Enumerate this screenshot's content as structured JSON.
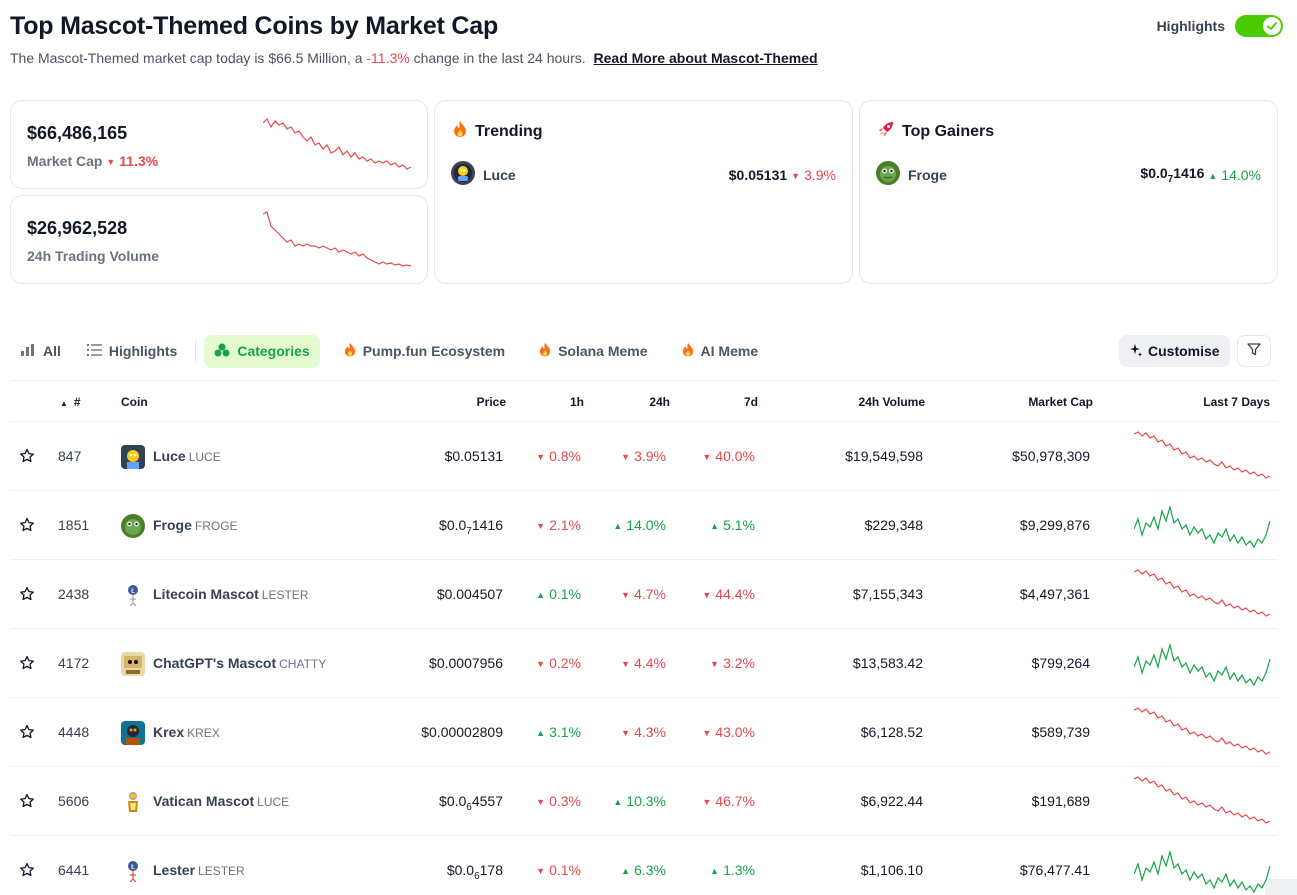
{
  "page": {
    "title": "Top Mascot-Themed Coins by Market Cap",
    "subtitle_prefix": "The Mascot-Themed market cap today is $66.5 Million, a",
    "subtitle_change": "-11.3%",
    "subtitle_suffix": "change in the last 24 hours.",
    "read_more": "Read More about Mascot-Themed"
  },
  "highlights_toggle": {
    "label": "Highlights",
    "on": true
  },
  "stats": {
    "market_cap": {
      "value": "$66,486,165",
      "label": "Market Cap",
      "change": "11.3%",
      "direction": "down"
    },
    "volume": {
      "value": "$26,962,528",
      "label": "24h Trading Volume"
    }
  },
  "trending": {
    "title": "Trending",
    "coin": {
      "name": "Luce",
      "price": "$0.05131",
      "change": "3.9%",
      "direction": "down"
    }
  },
  "top_gainers": {
    "title": "Top Gainers",
    "coin": {
      "name": "Froge",
      "price_prefix": "$0.0",
      "price_sub": "7",
      "price_suffix": "1416",
      "change": "14.0%",
      "direction": "up"
    }
  },
  "tabs": [
    {
      "label": "All",
      "icon": "bar-chart-icon",
      "active": false
    },
    {
      "label": "Highlights",
      "icon": "list-icon",
      "active": false
    },
    {
      "label": "Categories",
      "icon": "categories-icon",
      "active": true
    },
    {
      "label": "Pump.fun Ecosystem",
      "icon": "fire-icon",
      "active": false
    },
    {
      "label": "Solana Meme",
      "icon": "fire-icon",
      "active": false
    },
    {
      "label": "AI Meme",
      "icon": "fire-icon",
      "active": false
    }
  ],
  "toolbar": {
    "customise_label": "Customise",
    "filter_icon": "filter-icon"
  },
  "table": {
    "headers": {
      "rank": "#",
      "coin": "Coin",
      "price": "Price",
      "h1": "1h",
      "h24": "24h",
      "d7": "7d",
      "volume": "24h Volume",
      "market_cap": "Market Cap",
      "last7": "Last 7 Days"
    },
    "rows": [
      {
        "rank": "847",
        "name": "Luce",
        "symbol": "LUCE",
        "price_prefix": "$0.05131",
        "price_sub": "",
        "price_suffix": "",
        "h1": "0.8%",
        "h1_dir": "down",
        "h24": "3.9%",
        "h24_dir": "down",
        "d7": "40.0%",
        "d7_dir": "down",
        "volume": "$19,549,598",
        "market_cap": "$50,978,309",
        "trend": "down"
      },
      {
        "rank": "1851",
        "name": "Froge",
        "symbol": "FROGE",
        "price_prefix": "$0.0",
        "price_sub": "7",
        "price_suffix": "1416",
        "h1": "2.1%",
        "h1_dir": "down",
        "h24": "14.0%",
        "h24_dir": "up",
        "d7": "5.1%",
        "d7_dir": "up",
        "volume": "$229,348",
        "market_cap": "$9,299,876",
        "trend": "up"
      },
      {
        "rank": "2438",
        "name": "Litecoin Mascot",
        "symbol": "LESTER",
        "price_prefix": "$0.004507",
        "price_sub": "",
        "price_suffix": "",
        "h1": "0.1%",
        "h1_dir": "up",
        "h24": "4.7%",
        "h24_dir": "down",
        "d7": "44.4%",
        "d7_dir": "down",
        "volume": "$7,155,343",
        "market_cap": "$4,497,361",
        "trend": "down"
      },
      {
        "rank": "4172",
        "name": "ChatGPT's Mascot",
        "symbol": "CHATTY",
        "price_prefix": "$0.0007956",
        "price_sub": "",
        "price_suffix": "",
        "h1": "0.2%",
        "h1_dir": "down",
        "h24": "4.4%",
        "h24_dir": "down",
        "d7": "3.2%",
        "d7_dir": "down",
        "volume": "$13,583.42",
        "market_cap": "$799,264",
        "trend": "up"
      },
      {
        "rank": "4448",
        "name": "Krex",
        "symbol": "KREX",
        "price_prefix": "$0.00002809",
        "price_sub": "",
        "price_suffix": "",
        "h1": "3.1%",
        "h1_dir": "up",
        "h24": "4.3%",
        "h24_dir": "down",
        "d7": "43.0%",
        "d7_dir": "down",
        "volume": "$6,128.52",
        "market_cap": "$589,739",
        "trend": "down"
      },
      {
        "rank": "5606",
        "name": "Vatican Mascot",
        "symbol": "LUCE",
        "price_prefix": "$0.0",
        "price_sub": "6",
        "price_suffix": "4557",
        "h1": "0.3%",
        "h1_dir": "down",
        "h24": "10.3%",
        "h24_dir": "up",
        "d7": "46.7%",
        "d7_dir": "down",
        "volume": "$6,922.44",
        "market_cap": "$191,689",
        "trend": "down"
      },
      {
        "rank": "6441",
        "name": "Lester",
        "symbol": "LESTER",
        "price_prefix": "$0.0",
        "price_sub": "6",
        "price_suffix": "178",
        "h1": "0.1%",
        "h1_dir": "down",
        "h24": "6.3%",
        "h24_dir": "up",
        "d7": "1.3%",
        "d7_dir": "up",
        "volume": "$1,106.10",
        "market_cap": "$76,477.41",
        "trend": "up"
      }
    ]
  },
  "colors": {
    "up": "#16a34a",
    "down": "#e5484d",
    "accent": "#4bcc00"
  }
}
